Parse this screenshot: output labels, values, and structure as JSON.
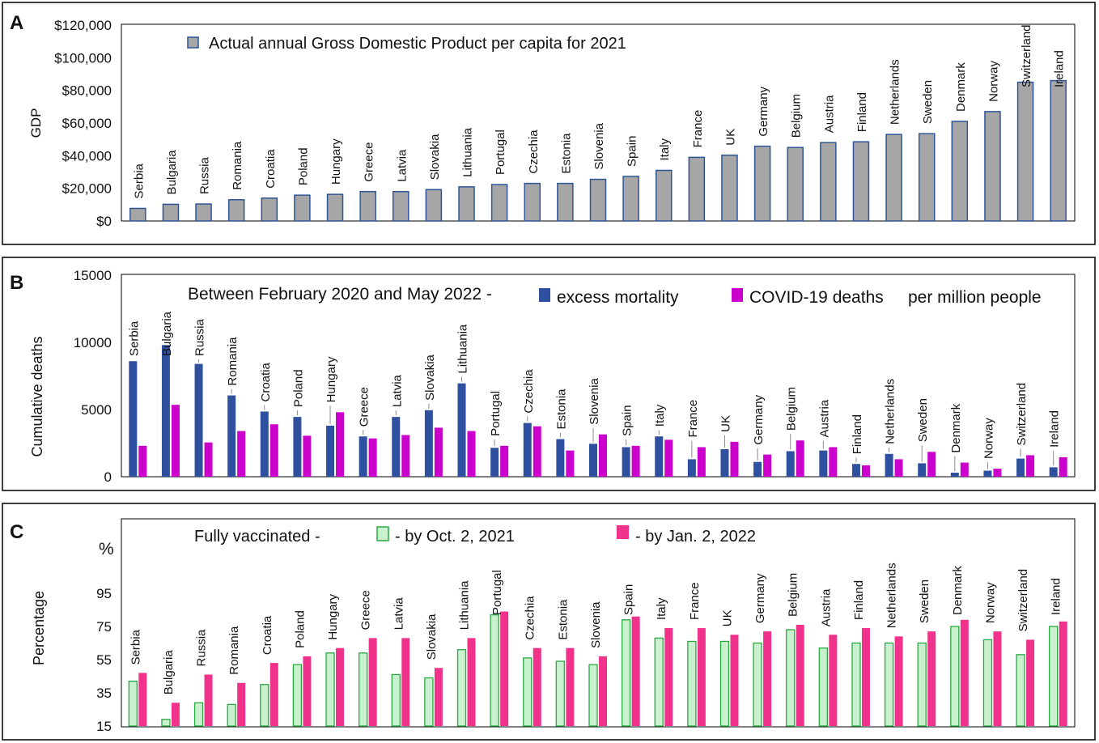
{
  "countries": [
    "Serbia",
    "Bulgaria",
    "Russia",
    "Romania",
    "Croatia",
    "Poland",
    "Hungary",
    "Greece",
    "Latvia",
    "Slovakia",
    "Lithuania",
    "Portugal",
    "Czechia",
    "Estonia",
    "Slovenia",
    "Spain",
    "Italy",
    "France",
    "UK",
    "Germany",
    "Belgium",
    "Austria",
    "Finland",
    "Netherlands",
    "Sweden",
    "Denmark",
    "Norway",
    "Switzerland",
    "Ireland"
  ],
  "colors": {
    "gdp_fill": "#a6a6a6",
    "gdp_stroke": "#2f5597",
    "excess": "#2e509f",
    "covid": "#cc00cc",
    "oct_fill": "#c9f1cd",
    "oct_stroke": "#2aa844",
    "jan": "#f0328a"
  },
  "chart_data": [
    {
      "panel": "A",
      "type": "bar",
      "legend": "Actual annual Gross Domestic Product per capita for 2021",
      "ylabel": "GDP",
      "ylim": [
        0,
        120000
      ],
      "yticks": [
        "$0",
        "$20,000",
        "$40,000",
        "$60,000",
        "$80,000",
        "$100,000",
        "$120,000"
      ],
      "series": [
        {
          "name": "GDP per capita 2021",
          "values": [
            7700,
            10200,
            10400,
            13000,
            14000,
            15800,
            16300,
            18000,
            18000,
            19200,
            20900,
            22300,
            23000,
            23000,
            25500,
            27300,
            31000,
            39000,
            40300,
            45800,
            45000,
            48000,
            48500,
            53000,
            53500,
            61000,
            67000,
            85000,
            86000
          ]
        }
      ]
    },
    {
      "panel": "B",
      "type": "bar",
      "title": "Between February 2020 and May 2022 -",
      "legend_suffix": "per million people",
      "ylabel": "Cumulative deaths",
      "ylim": [
        0,
        15000
      ],
      "yticks": [
        "0",
        "5000",
        "10000",
        "15000"
      ],
      "series": [
        {
          "name": "excess mortality",
          "values": [
            8600,
            9800,
            8400,
            6050,
            4850,
            4450,
            3800,
            3000,
            4450,
            4950,
            6950,
            2150,
            4000,
            2800,
            2450,
            2200,
            3000,
            1300,
            2050,
            1100,
            1900,
            1950,
            950,
            1700,
            1000,
            300,
            450,
            1350,
            700
          ]
        },
        {
          "name": "COVID-19 deaths",
          "values": [
            2300,
            5350,
            2550,
            3400,
            3900,
            3050,
            4800,
            2850,
            3100,
            3650,
            3400,
            2300,
            3750,
            1950,
            3150,
            2300,
            2750,
            2200,
            2600,
            1650,
            2700,
            2200,
            850,
            1300,
            1850,
            1050,
            600,
            1600,
            1450
          ]
        }
      ]
    },
    {
      "panel": "C",
      "type": "bar",
      "title": "Fully vaccinated -",
      "unit_label": "%",
      "ylabel": "Percentage",
      "ylim": [
        15,
        95
      ],
      "yticks": [
        "15",
        "35",
        "55",
        "75",
        "95"
      ],
      "series": [
        {
          "name": "- by Oct. 2, 2021",
          "values": [
            42,
            19,
            29,
            28,
            40,
            52,
            59,
            59,
            46,
            44,
            61,
            82,
            56,
            54,
            52,
            79,
            68,
            66,
            66,
            65,
            73,
            62,
            65,
            65,
            65,
            75,
            67,
            58,
            75
          ]
        },
        {
          "name": "- by Jan. 2, 2022",
          "values": [
            47,
            29,
            46,
            41,
            53,
            57,
            62,
            68,
            68,
            50,
            68,
            84,
            62,
            62,
            57,
            81,
            74,
            74,
            70,
            72,
            76,
            70,
            74,
            69,
            72,
            79,
            72,
            67,
            78
          ]
        }
      ]
    }
  ]
}
